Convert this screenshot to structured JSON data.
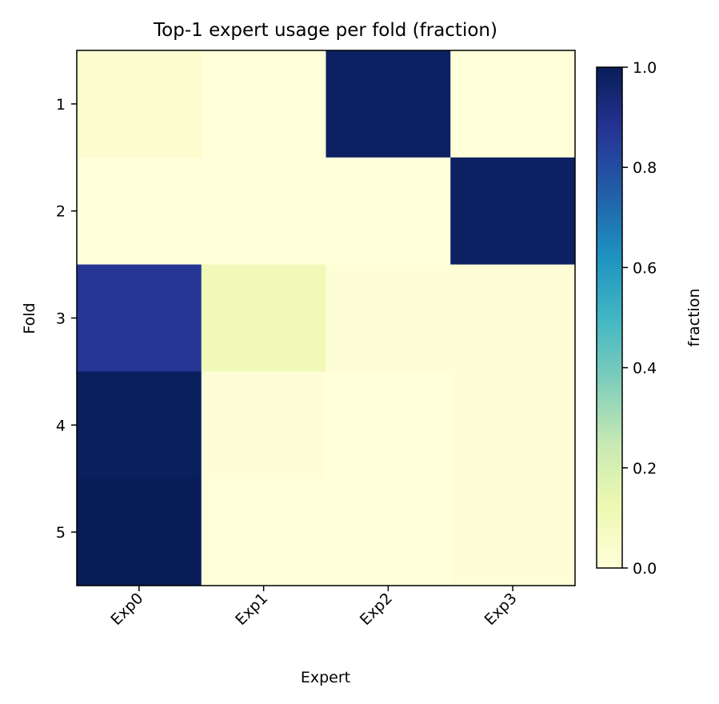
{
  "chart_data": {
    "type": "heatmap",
    "title": "Top-1 expert usage per fold (fraction)",
    "xlabel": "Expert",
    "ylabel": "Fold",
    "x_categories": [
      "Exp0",
      "Exp1",
      "Exp2",
      "Exp3"
    ],
    "y_categories": [
      "1",
      "2",
      "3",
      "4",
      "5"
    ],
    "values": [
      [
        0.03,
        0.0,
        0.98,
        0.0
      ],
      [
        0.0,
        0.0,
        0.0,
        0.98
      ],
      [
        0.87,
        0.1,
        0.01,
        0.01
      ],
      [
        0.99,
        0.01,
        0.0,
        0.01
      ],
      [
        1.0,
        0.0,
        0.0,
        0.01
      ]
    ],
    "colormap": "YlGnBu",
    "colorbar": {
      "label": "fraction",
      "range": [
        0,
        1
      ],
      "ticks": [
        0.0,
        0.2,
        0.4,
        0.6,
        0.8,
        1.0
      ],
      "tick_labels": [
        "0.0",
        "0.2",
        "0.4",
        "0.6",
        "0.8",
        "1.0"
      ],
      "placement": "right"
    },
    "grid": false
  }
}
